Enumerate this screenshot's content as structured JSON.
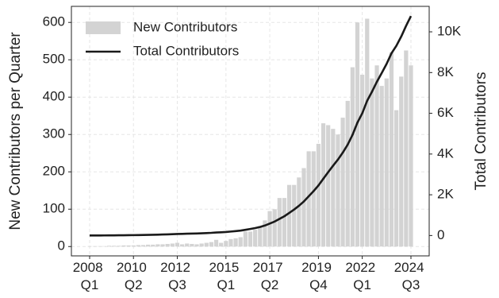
{
  "chart_data": {
    "type": "bar-line",
    "categories": [
      "2008 Q1",
      null,
      null,
      null,
      null,
      null,
      null,
      null,
      null,
      "2010 Q2",
      null,
      null,
      null,
      null,
      null,
      null,
      null,
      null,
      "2012 Q3",
      null,
      null,
      null,
      null,
      null,
      null,
      null,
      null,
      null,
      "2015 Q1",
      null,
      null,
      null,
      null,
      null,
      null,
      null,
      null,
      "2017 Q2",
      null,
      null,
      null,
      null,
      null,
      null,
      null,
      null,
      null,
      "2019 Q4",
      null,
      null,
      null,
      null,
      null,
      null,
      null,
      null,
      "2022 Q1",
      null,
      null,
      null,
      null,
      null,
      null,
      null,
      null,
      null,
      "2024 Q3"
    ],
    "series": [
      {
        "name": "New Contributors",
        "color": "#d3d3d3",
        "axis": "y",
        "values": [
          1,
          1,
          1,
          1,
          2,
          2,
          2,
          3,
          3,
          3,
          4,
          4,
          5,
          5,
          6,
          6,
          7,
          8,
          10,
          6,
          8,
          7,
          6,
          8,
          10,
          12,
          18,
          10,
          15,
          20,
          22,
          25,
          40,
          40,
          45,
          55,
          70,
          95,
          100,
          130,
          130,
          165,
          165,
          185,
          210,
          255,
          255,
          275,
          330,
          325,
          315,
          300,
          345,
          390,
          480,
          600,
          460,
          610,
          450,
          485,
          430,
          450,
          520,
          365,
          455,
          525,
          485
        ]
      },
      {
        "name": "Total Contributors",
        "color": "#1a1a1a",
        "axis": "y2",
        "values": [
          1,
          2,
          3,
          4,
          6,
          8,
          10,
          13,
          16,
          19,
          23,
          27,
          32,
          37,
          43,
          49,
          56,
          64,
          74,
          80,
          88,
          95,
          101,
          109,
          119,
          131,
          149,
          159,
          174,
          194,
          216,
          241,
          281,
          321,
          366,
          421,
          491,
          586,
          686,
          816,
          946,
          1111,
          1276,
          1461,
          1671,
          1926,
          2181,
          2456,
          2786,
          3111,
          3426,
          3726,
          4071,
          4461,
          4941,
          5541,
          6001,
          6611,
          7061,
          7546,
          7976,
          8426,
          8946,
          9311,
          9766,
          10291,
          10776
        ]
      }
    ],
    "ylabel": "New Contributors per Quarter",
    "y2label": "Total Contributors",
    "ylim": [
      -25,
      643
    ],
    "yticks": [
      0,
      100,
      200,
      300,
      400,
      500,
      600
    ],
    "y2lim": [
      -1000,
      11250
    ],
    "y2ticks": [
      0,
      {
        "value": 2000,
        "label": "2K"
      },
      {
        "value": 4000,
        "label": "4K"
      },
      {
        "value": 6000,
        "label": "6K"
      },
      {
        "value": 8000,
        "label": "8K"
      },
      {
        "value": 10000,
        "label": "10K"
      }
    ],
    "grid": true,
    "legend": "upper left"
  }
}
